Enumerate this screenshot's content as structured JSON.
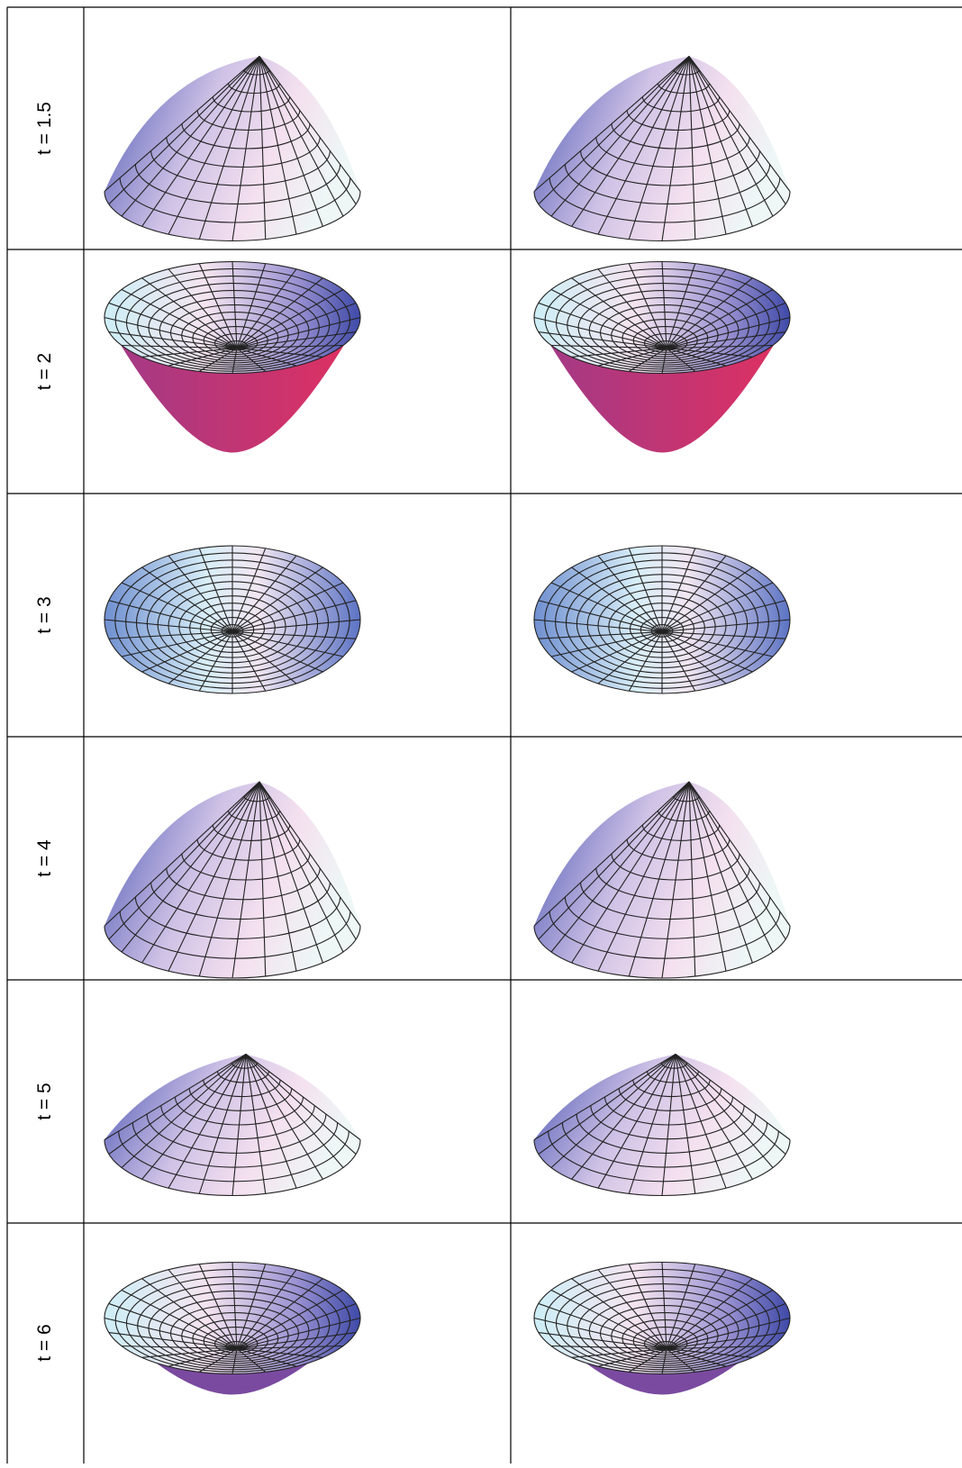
{
  "table": {
    "rows": [
      {
        "label": "t = 1.5"
      },
      {
        "label": "t = 2"
      },
      {
        "label": "t = 3"
      },
      {
        "label": "t = 4"
      },
      {
        "label": "t = 5"
      },
      {
        "label": "t = 6"
      }
    ]
  }
}
